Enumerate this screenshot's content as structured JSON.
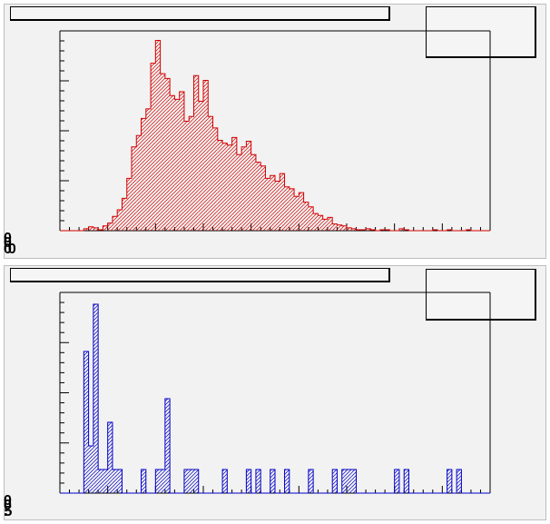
{
  "pads": [
    {
      "title": "",
      "stats": "",
      "y_labels": [
        "0",
        "0",
        "00"
      ]
    },
    {
      "title": "",
      "stats": "",
      "y_labels": [
        "0",
        "0",
        ".5"
      ]
    }
  ],
  "chart_data": [
    {
      "type": "bar",
      "title": "",
      "xlabel": "",
      "ylabel": "",
      "color": "#d40000",
      "fill": "hatched",
      "bins": 90,
      "x_bin_range": [
        0,
        90
      ],
      "ylim": [
        0,
        210
      ],
      "y_major_ticks": [
        0,
        50,
        100,
        150,
        200
      ],
      "values": [
        0,
        0,
        0,
        0,
        0,
        2,
        4,
        3,
        1,
        5,
        8,
        15,
        22,
        34,
        55,
        88,
        100,
        118,
        128,
        176,
        200,
        165,
        160,
        142,
        138,
        146,
        115,
        120,
        163,
        136,
        158,
        120,
        108,
        95,
        92,
        90,
        98,
        80,
        88,
        94,
        80,
        72,
        68,
        55,
        58,
        52,
        60,
        46,
        44,
        36,
        40,
        30,
        25,
        18,
        16,
        12,
        14,
        7,
        6,
        5,
        3,
        2,
        1,
        1,
        2,
        1,
        0,
        1,
        1,
        0,
        0,
        2,
        1,
        0,
        0,
        0,
        0,
        0,
        1,
        0,
        0,
        1,
        0,
        0,
        0,
        1,
        0,
        0,
        0,
        0
      ]
    },
    {
      "type": "bar",
      "title": "",
      "xlabel": "",
      "ylabel": "",
      "color": "#0000c8",
      "fill": "hatched",
      "bins": 90,
      "x_bin_range": [
        0,
        90
      ],
      "ylim": [
        0,
        8.5
      ],
      "values": [
        0,
        0,
        0,
        0,
        0,
        6,
        2,
        8,
        1,
        1,
        3,
        1,
        1,
        0,
        0,
        0,
        0,
        1,
        0,
        0,
        1,
        1,
        4,
        0,
        0,
        0,
        1,
        1,
        1,
        0,
        0,
        0,
        0,
        0,
        1,
        0,
        0,
        0,
        0,
        1,
        0,
        1,
        0,
        0,
        1,
        0,
        0,
        1,
        0,
        0,
        0,
        0,
        1,
        0,
        0,
        0,
        0,
        1,
        0,
        1,
        1,
        1,
        0,
        0,
        0,
        0,
        0,
        0,
        0,
        0,
        1,
        0,
        1,
        0,
        0,
        0,
        0,
        0,
        0,
        0,
        0,
        1,
        0,
        1,
        0,
        0,
        0,
        0,
        0,
        0
      ]
    }
  ]
}
